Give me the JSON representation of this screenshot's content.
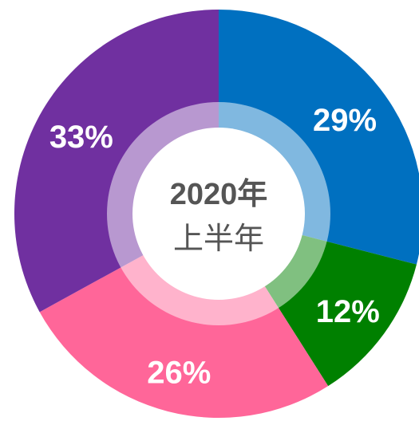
{
  "chart_data": {
    "type": "donut",
    "center_title": "2020年",
    "center_subtitle": "上半年",
    "values": [
      29,
      12,
      26,
      33
    ],
    "value_labels": [
      "29%",
      "12%",
      "26%",
      "33%"
    ],
    "colors": [
      "#0070C0",
      "#008000",
      "#FF6699",
      "#7030A0"
    ]
  }
}
